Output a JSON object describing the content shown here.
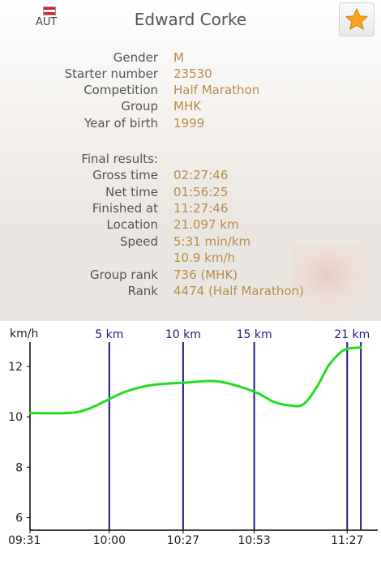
{
  "header": {
    "country": "AUT",
    "name": "Edward Corke",
    "favorite_icon": "star-icon"
  },
  "details": [
    {
      "label": "Gender",
      "value": "M"
    },
    {
      "label": "Starter number",
      "value": "23530"
    },
    {
      "label": "Competition",
      "value": "Half Marathon"
    },
    {
      "label": "Group",
      "value": "MHK"
    },
    {
      "label": "Year of birth",
      "value": "1999"
    }
  ],
  "results_heading": "Final results:",
  "results": [
    {
      "label": "Gross time",
      "value": "02:27:46"
    },
    {
      "label": "Net time",
      "value": "01:56:25"
    },
    {
      "label": "Finished at",
      "value": "11:27:46"
    },
    {
      "label": "Location",
      "value": "21.097 km"
    },
    {
      "label": "Speed",
      "value": "5:31 min/km"
    },
    {
      "label": "",
      "value": "10.9 km/h"
    },
    {
      "label": "Group rank",
      "value": "736 (MHK)"
    },
    {
      "label": "Rank",
      "value": "4474 (Half Marathon)"
    }
  ],
  "colors": {
    "accent_text": "#b88d4a",
    "speed_line": "#22dd22",
    "marker_line": "#1a1a8c"
  },
  "chart_data": {
    "type": "line",
    "ylabel": "km/h",
    "yticks": [
      6,
      8,
      10,
      12
    ],
    "ylim": [
      5.5,
      12.9
    ],
    "xticks": [
      "09:31",
      "10:00",
      "10:27",
      "10:53",
      "11:27"
    ],
    "xlim": [
      "09:31",
      "11:37"
    ],
    "markers": [
      {
        "label": "5 km",
        "time": "10:00"
      },
      {
        "label": "10 km",
        "time": "10:27"
      },
      {
        "label": "15 km",
        "time": "10:53"
      },
      {
        "label": "21 km",
        "time": "11:27"
      },
      {
        "label": "",
        "time": "11:32"
      }
    ],
    "series": [
      {
        "x": [
          "09:31",
          "09:45",
          "09:52",
          "10:00",
          "10:06",
          "10:15",
          "10:27",
          "10:40",
          "10:53",
          "11:00",
          "11:06",
          "11:11",
          "11:16",
          "11:20",
          "11:24",
          "11:27",
          "11:32"
        ],
        "y": [
          10.15,
          10.15,
          10.3,
          10.7,
          11.0,
          11.25,
          11.35,
          11.4,
          11.0,
          10.6,
          10.45,
          10.5,
          11.2,
          12.0,
          12.5,
          12.7,
          12.75
        ]
      }
    ]
  }
}
